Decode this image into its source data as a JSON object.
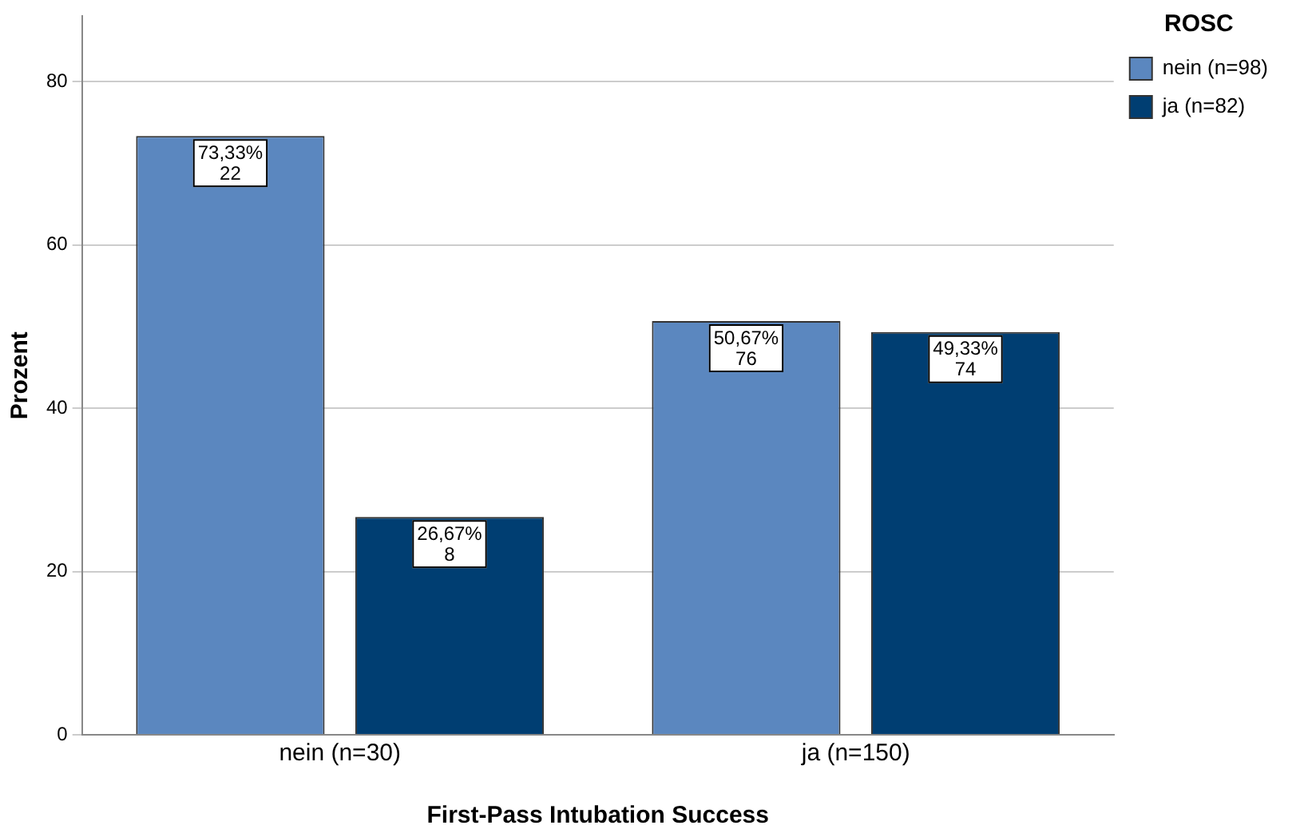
{
  "chart_data": {
    "type": "bar",
    "xlabel": "First-Pass Intubation Success",
    "ylabel": "Prozent",
    "legend_title": "ROSC",
    "legend": "top right",
    "categories": [
      "nein (n=30)",
      "ja (n=150)"
    ],
    "series": [
      {
        "name": "nein (n=98)",
        "color": "#5b87bf",
        "values": [
          73.33,
          50.67
        ],
        "value_labels": [
          "73,33%\n22",
          "50,67%\n76"
        ]
      },
      {
        "name": "ja (n=82)",
        "color": "#003e72",
        "values": [
          26.67,
          49.33
        ],
        "value_labels": [
          "26,67%\n8",
          "49,33%\n74"
        ]
      }
    ],
    "ylim": [
      0,
      88
    ],
    "yticks": [
      0,
      20,
      40,
      60,
      80
    ],
    "grid": "y"
  }
}
